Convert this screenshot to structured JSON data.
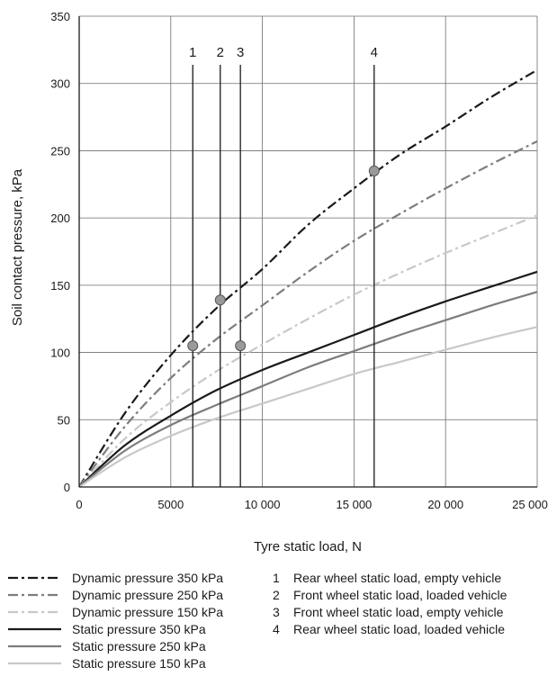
{
  "chart_data": {
    "type": "line",
    "title": "",
    "xlabel": "Tyre static load, N",
    "ylabel": "Soil contact pressure, kPa",
    "xlim": [
      0,
      25000
    ],
    "ylim": [
      0,
      350
    ],
    "grid": true,
    "legend_position": "bottom",
    "x_ticks": [
      0,
      5000,
      10000,
      15000,
      20000,
      25000
    ],
    "x_tick_labels": [
      "0",
      "5000",
      "10 000",
      "15 000",
      "20 000",
      "25 000"
    ],
    "y_ticks": [
      0,
      50,
      100,
      150,
      200,
      250,
      300,
      350
    ],
    "y_tick_labels": [
      "0",
      "50",
      "100",
      "150",
      "200",
      "250",
      "300",
      "350"
    ],
    "series": [
      {
        "name": "Dynamic pressure  350 kPa",
        "style": "dashdot",
        "color": "#1a1a1a",
        "width": 2.2,
        "x": [
          0,
          2500,
          5000,
          7500,
          10000,
          12500,
          15000,
          17500,
          20000,
          22500,
          25000
        ],
        "y": [
          0,
          55,
          98,
          133,
          162,
          195,
          222,
          247,
          268,
          290,
          310
        ]
      },
      {
        "name": "Dynamic pressure  250 kPa",
        "style": "dashdot",
        "color": "#7d7d7d",
        "width": 2.2,
        "x": [
          0,
          2500,
          5000,
          7500,
          10000,
          12500,
          15000,
          17500,
          20000,
          22500,
          25000
        ],
        "y": [
          0,
          45,
          81,
          110,
          135,
          160,
          183,
          203,
          222,
          240,
          257
        ]
      },
      {
        "name": "Dynamic pressure  150 kPa",
        "style": "dashdot",
        "color": "#c8c8c8",
        "width": 2.2,
        "x": [
          0,
          2500,
          5000,
          7500,
          10000,
          12500,
          15000,
          17500,
          20000,
          22500,
          25000
        ],
        "y": [
          0,
          36,
          63,
          86,
          106,
          125,
          143,
          159,
          174,
          188,
          202
        ]
      },
      {
        "name": "Static pressure 350 kPa",
        "style": "solid",
        "color": "#1a1a1a",
        "width": 2.2,
        "x": [
          0,
          2500,
          5000,
          7500,
          10000,
          12500,
          15000,
          17500,
          20000,
          22500,
          25000
        ],
        "y": [
          0,
          31,
          53,
          72,
          87,
          100,
          113,
          126,
          138,
          149,
          160
        ]
      },
      {
        "name": "Static pressure 250 kPa",
        "style": "solid",
        "color": "#7d7d7d",
        "width": 2.2,
        "x": [
          0,
          2500,
          5000,
          7500,
          10000,
          12500,
          15000,
          17500,
          20000,
          22500,
          25000
        ],
        "y": [
          0,
          27,
          46,
          61,
          75,
          89,
          101,
          113,
          124,
          135,
          145
        ]
      },
      {
        "name": "Static pressure 150 kPa",
        "style": "solid",
        "color": "#c8c8c8",
        "width": 2.2,
        "x": [
          0,
          2500,
          5000,
          7500,
          10000,
          12500,
          15000,
          17500,
          20000,
          22500,
          25000
        ],
        "y": [
          0,
          22,
          38,
          51,
          62,
          73,
          84,
          93,
          102,
          111,
          119
        ]
      }
    ],
    "vertical_lines": [
      {
        "label": "1",
        "x": 6200,
        "marker_y": 105,
        "description": "Rear wheel static load, empty vehicle"
      },
      {
        "label": "2",
        "x": 7700,
        "marker_y": 139,
        "description": "Front wheel static load, loaded vehicle"
      },
      {
        "label": "3",
        "x": 8800,
        "marker_y": 105,
        "description": "Front wheel static load, empty vehicle"
      },
      {
        "label": "4",
        "x": 16100,
        "marker_y": 235,
        "description": "Rear wheel static load, loaded vehicle"
      }
    ],
    "colors": {
      "axis": "#1a1a1a",
      "grid": "#6e6e6e",
      "marker_fill": "#9a9a9a",
      "marker_stroke": "#555555"
    }
  }
}
